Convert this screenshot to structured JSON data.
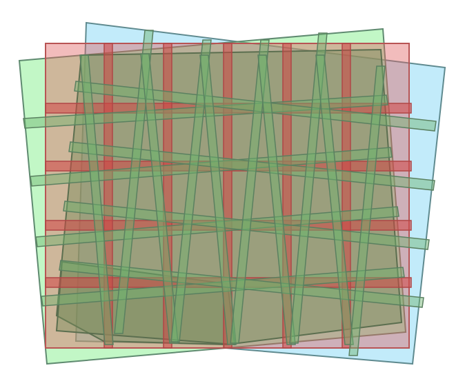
{
  "colors": {
    "green": "#6feb78",
    "blue": "#78d2f5",
    "red": "#e15f5f",
    "olive": "#788c5a",
    "background": "#ffffff"
  }
}
